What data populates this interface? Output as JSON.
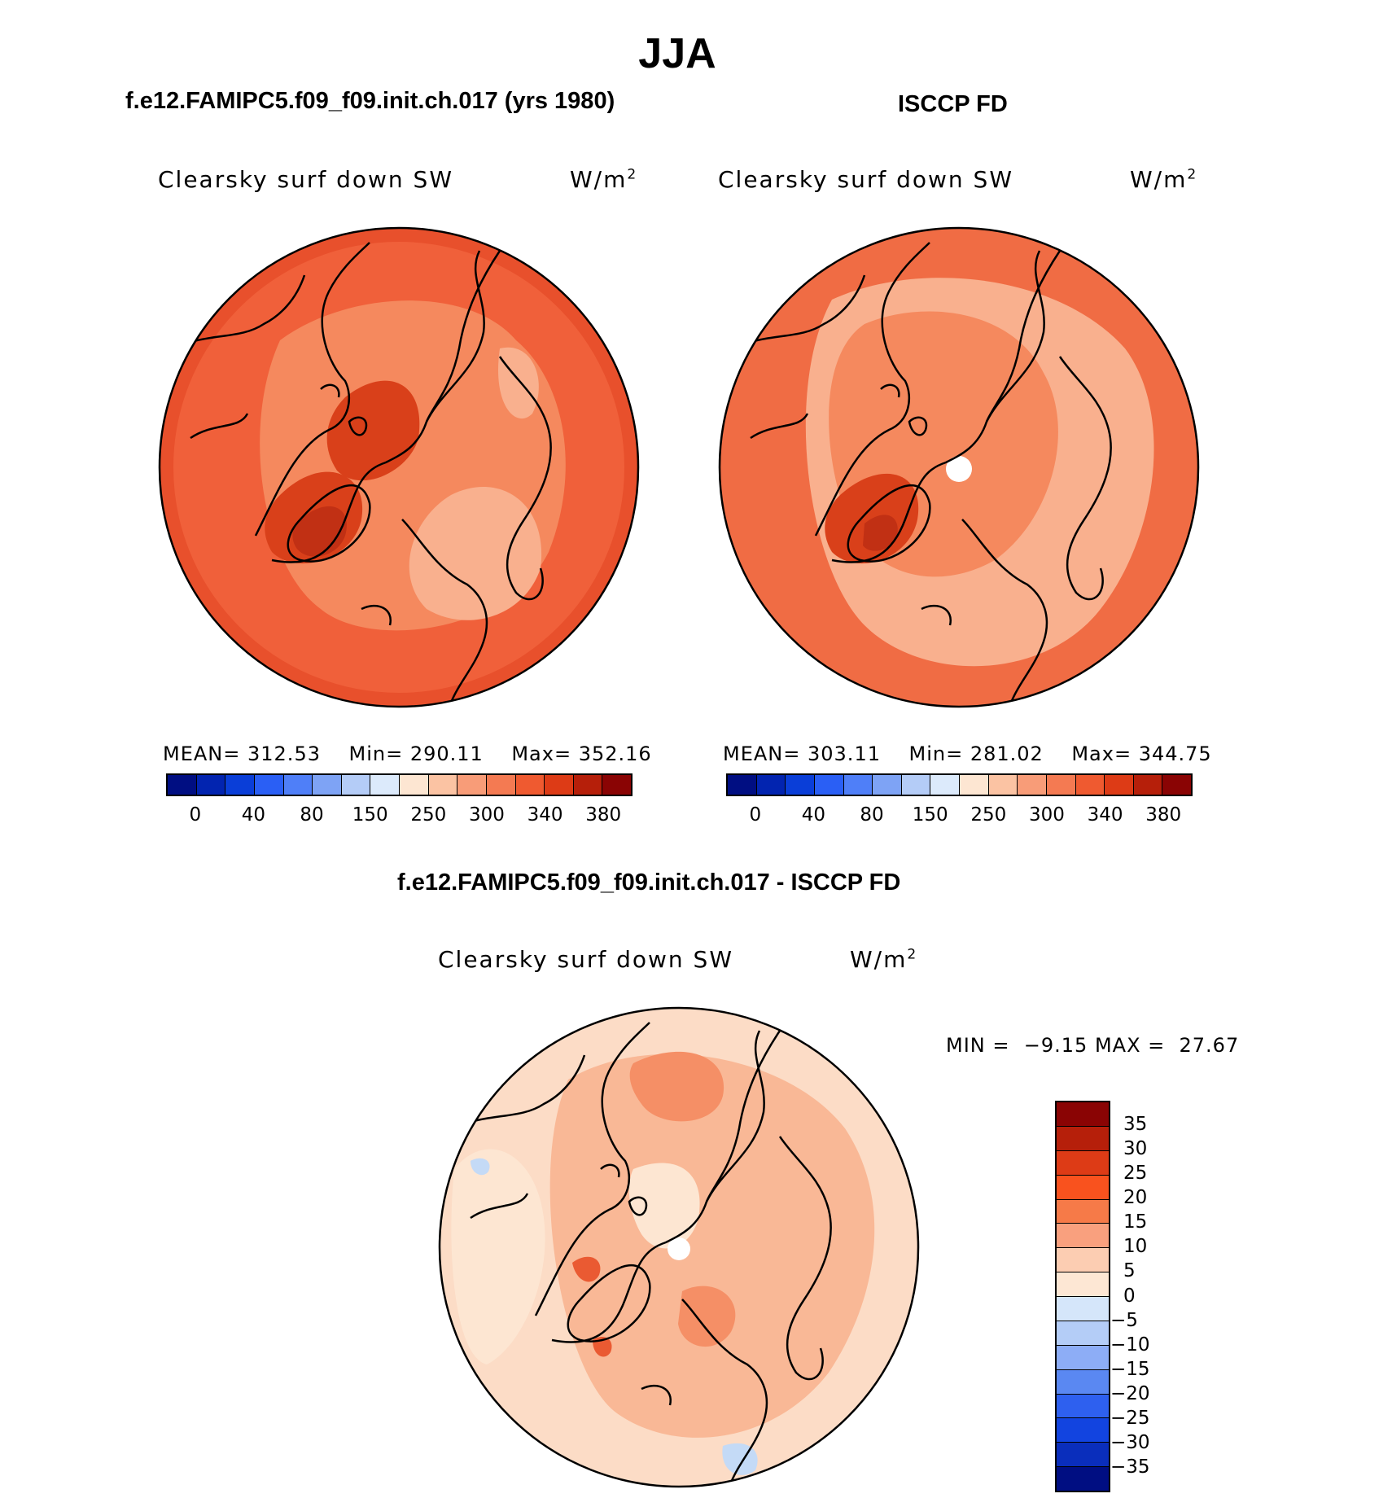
{
  "title": "JJA",
  "panels": [
    {
      "title": "f.e12.FAMIPC5.f09_f09.init.ch.017 (yrs 1980)",
      "variable_label": "Clearsky surf down SW",
      "units_base": "W/m",
      "units_exp": "2",
      "mean_label": "MEAN=",
      "mean_value": "312.53",
      "min_label": "Min=",
      "min_value": "290.11",
      "max_label": "Max=",
      "max_value": "352.16",
      "base_color": "#f0603a",
      "hole": false
    },
    {
      "title": "ISCCP FD",
      "variable_label": "Clearsky surf down SW",
      "units_base": "W/m",
      "units_exp": "2",
      "mean_label": "MEAN=",
      "mean_value": "303.11",
      "min_label": "Min=",
      "min_value": "281.02",
      "max_label": "Max=",
      "max_value": "344.75",
      "base_color": "#f06c44",
      "hole": true
    }
  ],
  "abs_colorbar": {
    "colors": [
      "#000e82",
      "#0224b0",
      "#0a3ed8",
      "#2a5ff5",
      "#4f7ff8",
      "#7ea3f5",
      "#b4ccf7",
      "#dceafb",
      "#fde6d2",
      "#fbc3a3",
      "#f89c78",
      "#f47a52",
      "#ef5a30",
      "#dd3b16",
      "#b61f0a",
      "#8a0404"
    ],
    "ticks": [
      "0",
      "40",
      "80",
      "150",
      "250",
      "300",
      "340",
      "380"
    ]
  },
  "diff_panel": {
    "title": "f.e12.FAMIPC5.f09_f09.init.ch.017 - ISCCP FD",
    "variable_label": "Clearsky surf down SW",
    "units_base": "W/m",
    "units_exp": "2",
    "min_label": "MIN =",
    "min_value": "−9.15",
    "max_label": "MAX =",
    "max_value": "27.67",
    "base_color": "#fcdcc6"
  },
  "diff_colorbar": {
    "colors": [
      "#8a0404",
      "#b61f0a",
      "#dd3b16",
      "#f9521e",
      "#f67a48",
      "#f9a07e",
      "#fccdb2",
      "#fde7d4",
      "#d5e6fa",
      "#b4cdf7",
      "#8dadf6",
      "#5a88f2",
      "#2e60ef",
      "#1244e0",
      "#0a2ebc",
      "#000e82"
    ],
    "ticks": [
      "35",
      "30",
      "25",
      "20",
      "15",
      "10",
      "5",
      "0",
      "−5",
      "−10",
      "−15",
      "−20",
      "−25",
      "−30",
      "−35"
    ]
  },
  "map_colors": {
    "ring_dark": "#e8502c",
    "mid": "#f5895e",
    "light": "#f9b08e",
    "dark": "#d9401a",
    "deep": "#c13014",
    "diff_light": "#fde6d2",
    "diff_mid": "#f9b896",
    "diff_strong": "#f58f66",
    "diff_hot": "#ea5a32",
    "diff_blue": "#c4daf6"
  }
}
